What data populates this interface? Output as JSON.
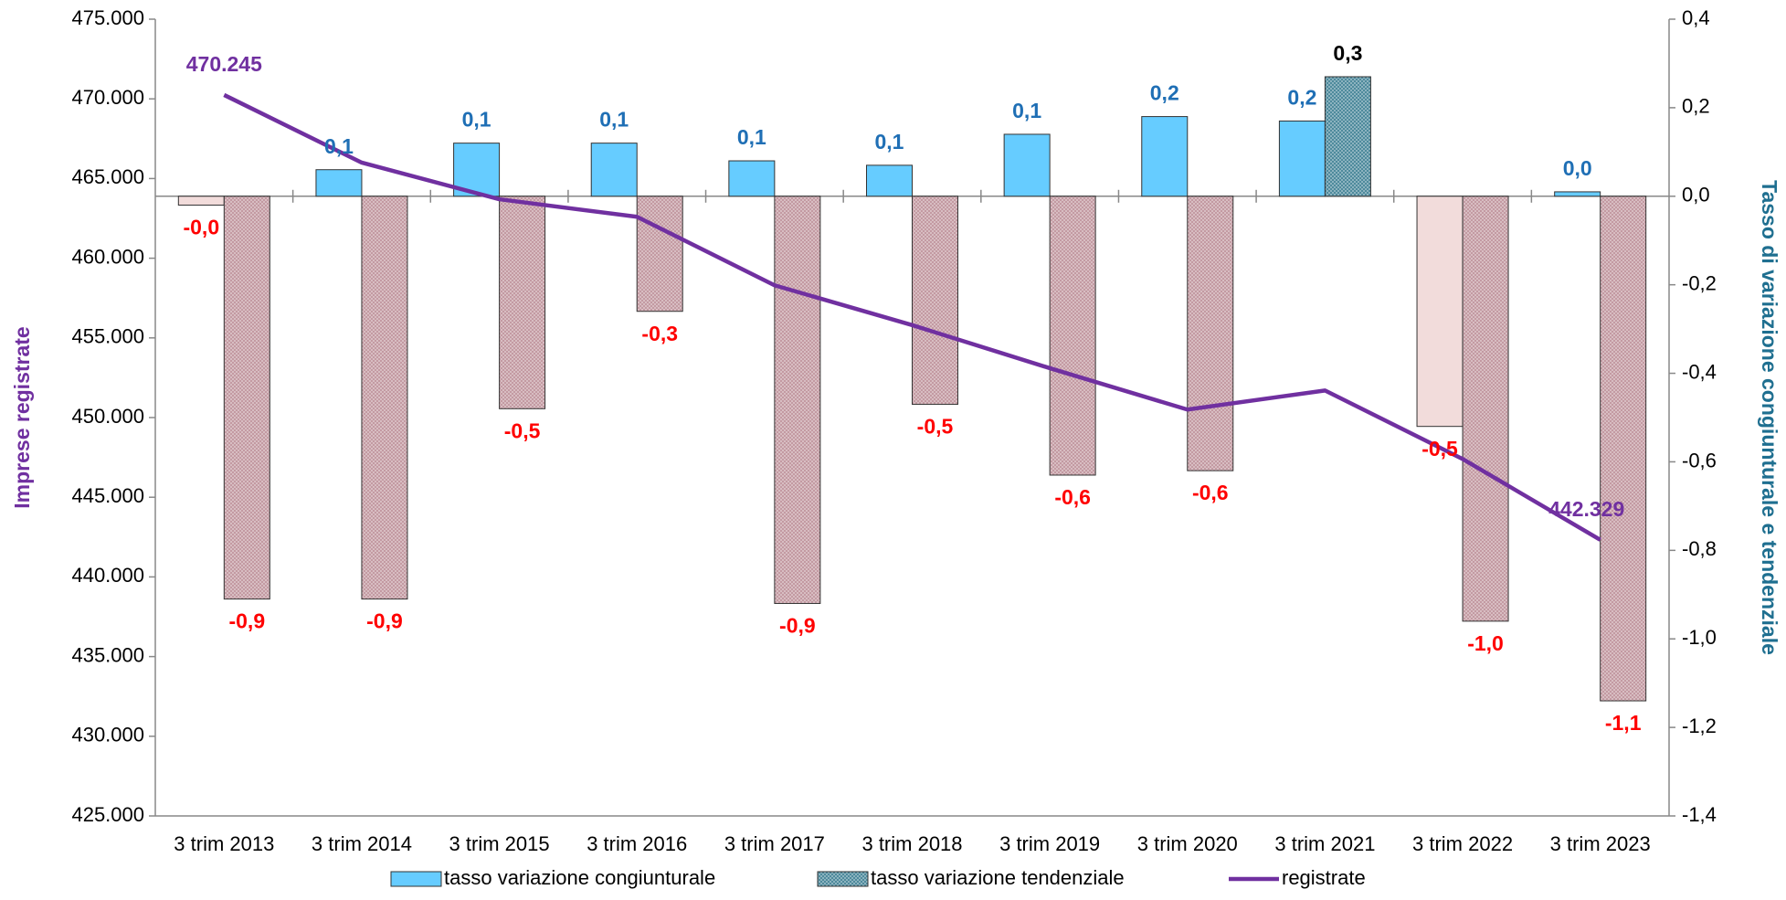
{
  "chart_data": {
    "type": "combo",
    "y_label": "Imprese registrate",
    "y2_label": "Tasso di variazione congiunturale e tendenziale",
    "categories": [
      "3 trim 2013",
      "3 trim 2014",
      "3 trim 2015",
      "3 trim 2016",
      "3 trim 2017",
      "3 trim 2018",
      "3 trim 2019",
      "3 trim 2020",
      "3 trim 2021",
      "3 trim 2022",
      "3 trim 2023"
    ],
    "ylim": [
      425000,
      475000
    ],
    "yticks": [
      {
        "value": 425000,
        "label": "425.000"
      },
      {
        "value": 430000,
        "label": "430.000"
      },
      {
        "value": 435000,
        "label": "435.000"
      },
      {
        "value": 440000,
        "label": "440.000"
      },
      {
        "value": 445000,
        "label": "445.000"
      },
      {
        "value": 450000,
        "label": "450.000"
      },
      {
        "value": 455000,
        "label": "455.000"
      },
      {
        "value": 460000,
        "label": "460.000"
      },
      {
        "value": 465000,
        "label": "465.000"
      },
      {
        "value": 470000,
        "label": "470.000"
      },
      {
        "value": 475000,
        "label": "475.000"
      }
    ],
    "y2lim": [
      -1.4,
      0.4
    ],
    "y2ticks": [
      {
        "value": -1.4,
        "label": "-1,4"
      },
      {
        "value": -1.2,
        "label": "-1,2"
      },
      {
        "value": -1.0,
        "label": "-1,0"
      },
      {
        "value": -0.8,
        "label": "-0,8"
      },
      {
        "value": -0.6,
        "label": "-0,6"
      },
      {
        "value": -0.4,
        "label": "-0,4"
      },
      {
        "value": -0.2,
        "label": "-0,2"
      },
      {
        "value": 0,
        "label": "0,0"
      },
      {
        "value": 0.2,
        "label": "0,2"
      },
      {
        "value": 0.4,
        "label": "0,4"
      }
    ],
    "legend": "bottom",
    "series": [
      {
        "name": "tasso variazione congiunturale",
        "type": "bar",
        "axis": "y2",
        "color": "#66ccff",
        "negative_color": "#f2dcdb",
        "label_color": "#1f6fb5",
        "values": [
          -0.02,
          0.06,
          0.12,
          0.12,
          0.08,
          0.07,
          0.14,
          0.18,
          0.17,
          -0.52,
          0.01
        ],
        "value_labels": [
          "-0,0",
          "0,1",
          "0,1",
          "0,1",
          "0,1",
          "0,1",
          "0,1",
          "0,2",
          "0,2",
          "-0,5",
          "0,0"
        ]
      },
      {
        "name": "tasso variazione tendenziale",
        "type": "bar",
        "axis": "y2",
        "hatch": true,
        "color": "#4e8a9c",
        "negative_color": "#c39aa2",
        "label_color": "#000000",
        "values": [
          -0.91,
          -0.91,
          -0.48,
          -0.26,
          -0.92,
          -0.47,
          -0.63,
          -0.62,
          0.27,
          -0.96,
          -1.14
        ],
        "value_labels": [
          "-0,9",
          "-0,9",
          "-0,5",
          "-0,3",
          "-0,9",
          "-0,5",
          "-0,6",
          "-0,6",
          "0,3",
          "-1,0",
          "-1,1"
        ]
      },
      {
        "name": "registrate",
        "type": "line",
        "color": "#7030a0",
        "label_color": "#7030a0",
        "values": [
          470245,
          466000,
          463700,
          462600,
          458300,
          455800,
          453100,
          450500,
          451700,
          447400,
          442329
        ],
        "value_labels": [
          "470.245",
          null,
          null,
          null,
          null,
          null,
          null,
          null,
          null,
          null,
          "442.329"
        ]
      }
    ]
  }
}
